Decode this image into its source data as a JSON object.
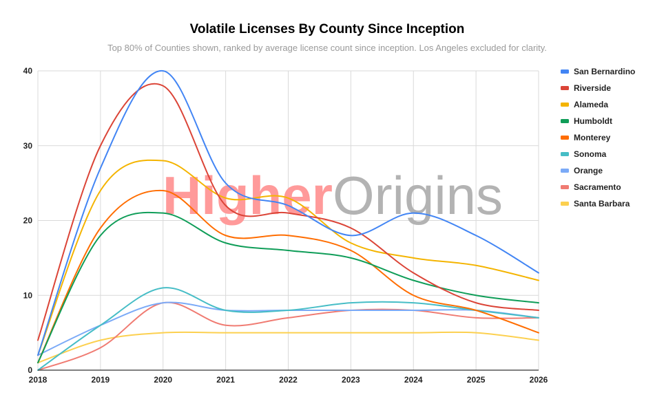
{
  "chart_data": {
    "type": "line",
    "title": "Volatile Licenses By County Since Inception",
    "subtitle": "Top 80% of Counties shown, ranked by average license count since inception. Los Angeles excluded for clarity.",
    "watermark": {
      "part1": "Higher",
      "part2": "Origins",
      "color1": "#ff9a9a",
      "color2": "#b3b3b3"
    },
    "xlabel": "",
    "ylabel": "",
    "x": [
      2018,
      2019,
      2020,
      2021,
      2022,
      2023,
      2024,
      2025,
      2026
    ],
    "xlim": [
      2018,
      2026
    ],
    "ylim": [
      0,
      40
    ],
    "yticks": [
      0,
      10,
      20,
      30,
      40
    ],
    "grid": true,
    "smooth": true,
    "legend_position": "right",
    "series": [
      {
        "name": "San Bernardino",
        "color": "#4285f4",
        "values": [
          2,
          27,
          40,
          25,
          22,
          18,
          21,
          18,
          13
        ]
      },
      {
        "name": "Riverside",
        "color": "#db4437",
        "values": [
          4,
          30,
          38,
          22,
          21,
          19,
          13,
          9,
          8
        ]
      },
      {
        "name": "Alameda",
        "color": "#f4b400",
        "values": [
          2,
          24,
          28,
          23,
          23,
          17,
          15,
          14,
          12
        ]
      },
      {
        "name": "Humboldt",
        "color": "#0f9d58",
        "values": [
          1,
          18,
          21,
          17,
          16,
          15,
          12,
          10,
          9
        ]
      },
      {
        "name": "Monterey",
        "color": "#ff6d01",
        "values": [
          1,
          19,
          24,
          18,
          18,
          16,
          10,
          8,
          5
        ]
      },
      {
        "name": "Sonoma",
        "color": "#46bdc6",
        "values": [
          0,
          6,
          11,
          8,
          8,
          9,
          9,
          8,
          7
        ]
      },
      {
        "name": "Orange",
        "color": "#7baaf7",
        "values": [
          2,
          6,
          9,
          8,
          8,
          8,
          8,
          8,
          7
        ]
      },
      {
        "name": "Sacramento",
        "color": "#f07b72",
        "values": [
          0,
          3,
          9,
          6,
          7,
          8,
          8,
          7,
          7
        ]
      },
      {
        "name": "Santa Barbara",
        "color": "#fcd04f",
        "values": [
          1,
          4,
          5,
          5,
          5,
          5,
          5,
          5,
          4
        ]
      }
    ]
  }
}
